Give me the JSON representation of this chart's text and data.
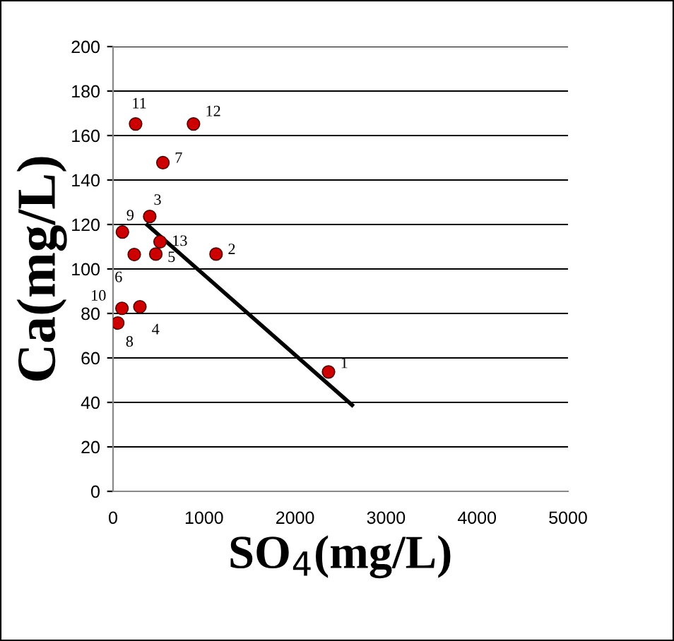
{
  "chart_data": {
    "type": "scatter",
    "xlabel": "SO$_{4}$(mg/L)",
    "ylabel": "Ca(mg/L)",
    "xlim": [
      0,
      5000
    ],
    "xticks": [
      0,
      1000,
      2000,
      3000,
      4000,
      5000
    ],
    "ylim": [
      0,
      200
    ],
    "yticks": [
      0,
      20,
      40,
      60,
      80,
      100,
      120,
      140,
      160,
      180,
      200
    ],
    "grid": "y",
    "series": [
      {
        "marker": "circle",
        "color": "#cc0000",
        "x": [
          2368,
          1132,
          403,
          295,
          470,
          233,
          548,
          52,
          103,
          98,
          248,
          884,
          517
        ],
        "values": [
          53.7,
          106.7,
          123.6,
          83,
          106.7,
          106.5,
          147.8,
          75.7,
          116.6,
          82.3,
          165.2,
          165.2,
          112.2
        ]
      },
      {
        "type": "line",
        "color": "#000000",
        "x": [
          377,
          2627
        ],
        "values": [
          119.8,
          38.8
        ]
      }
    ],
    "annotations": [
      {
        "text": "1",
        "x": 2368,
        "y": 53.7
      },
      {
        "text": "2",
        "x": 1132,
        "y": 106.7
      },
      {
        "text": "3",
        "x": 403,
        "y": 123.6
      },
      {
        "text": "4",
        "x": 295,
        "y": 83
      },
      {
        "text": "5",
        "x": 470,
        "y": 106.7
      },
      {
        "text": "6",
        "x": 233,
        "y": 106.5
      },
      {
        "text": "7",
        "x": 548,
        "y": 147.8
      },
      {
        "text": "8",
        "x": 52,
        "y": 75.7
      },
      {
        "text": "9",
        "x": 103,
        "y": 116.6
      },
      {
        "text": "10",
        "x": 98,
        "y": 82.3
      },
      {
        "text": "11",
        "x": 248,
        "y": 165.2
      },
      {
        "text": "12",
        "x": 884,
        "y": 165.2
      },
      {
        "text": "13",
        "x": 517,
        "y": 112.2
      }
    ]
  }
}
